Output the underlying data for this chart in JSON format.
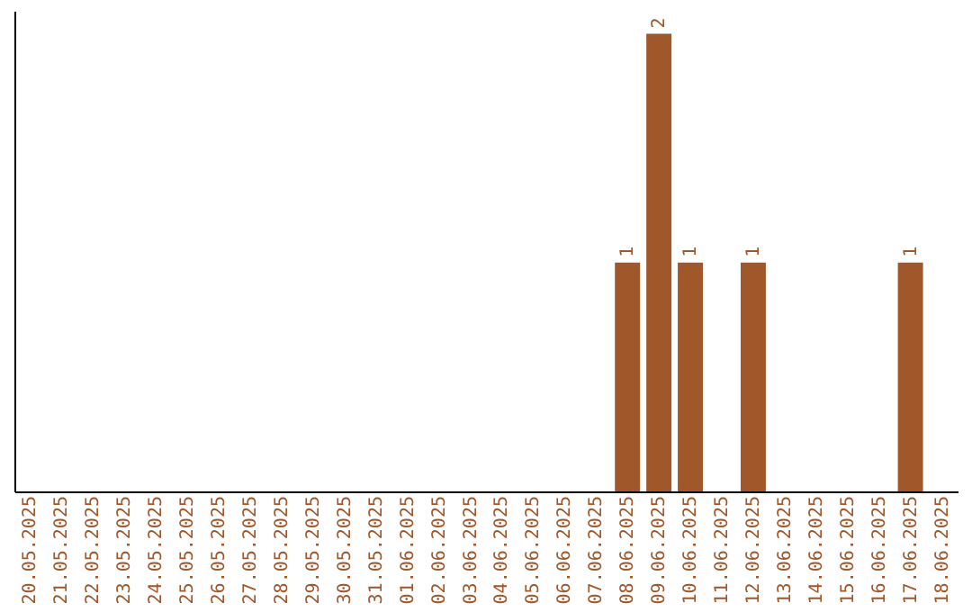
{
  "chart_data": {
    "type": "bar",
    "categories": [
      "20.05.2025",
      "21.05.2025",
      "22.05.2025",
      "23.05.2025",
      "24.05.2025",
      "25.05.2025",
      "26.05.2025",
      "27.05.2025",
      "28.05.2025",
      "29.05.2025",
      "30.05.2025",
      "31.05.2025",
      "01.06.2025",
      "02.06.2025",
      "03.06.2025",
      "04.06.2025",
      "05.06.2025",
      "06.06.2025",
      "07.06.2025",
      "08.06.2025",
      "09.06.2025",
      "10.06.2025",
      "11.06.2025",
      "12.06.2025",
      "13.06.2025",
      "14.06.2025",
      "15.06.2025",
      "16.06.2025",
      "17.06.2025",
      "18.06.2025"
    ],
    "values": [
      null,
      null,
      null,
      null,
      null,
      null,
      null,
      null,
      null,
      null,
      null,
      null,
      null,
      null,
      null,
      null,
      null,
      null,
      null,
      1,
      2,
      1,
      null,
      1,
      null,
      null,
      null,
      null,
      1,
      null
    ],
    "data_labels": true,
    "color": "#a0572a",
    "ylim": [
      0,
      2.1
    ],
    "tick_labels": "x",
    "grid": false
  }
}
